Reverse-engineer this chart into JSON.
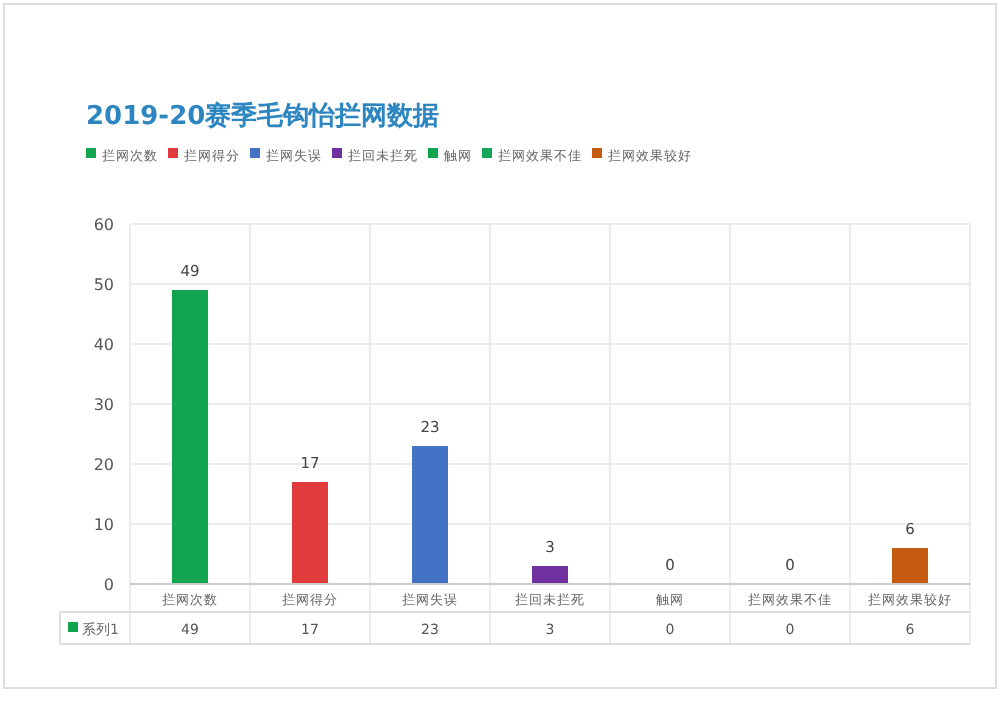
{
  "chart_data": {
    "type": "bar",
    "title": "2019-20赛季毛钩怡拦网数据",
    "categories": [
      "拦网次数",
      "拦网得分",
      "拦网失误",
      "拦回未拦死",
      "触网",
      "拦网效果不佳",
      "拦网效果较好"
    ],
    "series": [
      {
        "name": "系列1",
        "values": [
          49,
          17,
          23,
          3,
          0,
          0,
          6
        ],
        "colors": [
          "#12a550",
          "#e03a3a",
          "#4472c4",
          "#7030a0",
          "#12a550",
          "#13a65a",
          "#c55a11"
        ]
      }
    ],
    "ylim": [
      0,
      60
    ],
    "yticks": [
      0,
      10,
      20,
      30,
      40,
      50,
      60
    ],
    "grid": true,
    "legend": "bottom left",
    "data_labels": true,
    "annotations": [
      "49",
      "17",
      "23",
      "3",
      "0",
      "0",
      "6"
    ]
  }
}
